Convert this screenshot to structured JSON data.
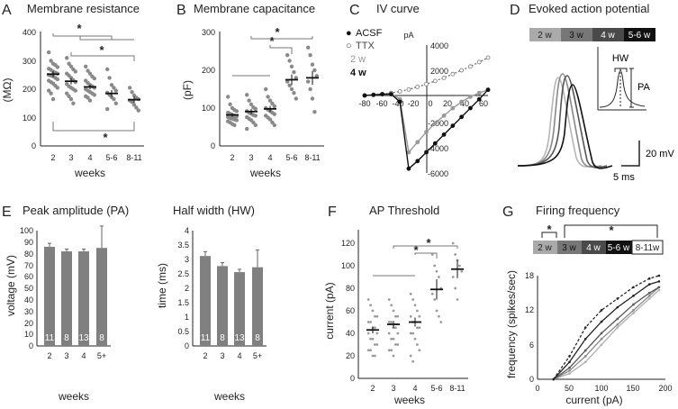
{
  "panels": {
    "A": {
      "letter": "A",
      "title": "Membrane resistance",
      "ylabel": "(MΩ)",
      "xlabel": "weeks",
      "yticks": [
        "0",
        "100",
        "200",
        "300",
        "400"
      ],
      "categories": [
        "2",
        "3",
        "4",
        "5-6",
        "8-11"
      ],
      "stars": [
        "*",
        "*",
        "*"
      ]
    },
    "B": {
      "letter": "B",
      "title": "Membrane capacitance",
      "ylabel": "(pF)",
      "xlabel": "weeks",
      "yticks": [
        "0",
        "100",
        "200",
        "300"
      ],
      "categories": [
        "2",
        "3",
        "4",
        "5-6",
        "8-11"
      ],
      "stars": [
        "*",
        "*"
      ]
    },
    "C": {
      "letter": "C",
      "title": "IV curve",
      "unit_y": "pA",
      "xticks": [
        "-80",
        "-60",
        "-40",
        "-20",
        "0",
        "20",
        "40",
        "60"
      ],
      "yticks": [
        "-6000",
        "-4000",
        "-2000",
        "2000",
        "4000"
      ],
      "legend": [
        "ACSF",
        "TTX",
        "2 w",
        "4 w"
      ],
      "legend_symbols": [
        "●",
        "○",
        "",
        ""
      ]
    },
    "D": {
      "letter": "D",
      "title": "Evoked action potential",
      "age_boxes": [
        "2 w",
        "3 w",
        "4 w",
        "5-6 w"
      ],
      "hw_label": "HW",
      "pa_label": "PA",
      "scale_y": "20 mV",
      "scale_x": "5 ms"
    },
    "E": {
      "letter": "E",
      "title": "Peak amplitude (PA)",
      "ylabel": "voltage (mV)",
      "xlabel": "weeks",
      "yticks": [
        "0",
        "10",
        "20",
        "30",
        "40",
        "50",
        "60",
        "70",
        "80",
        "90",
        "100"
      ]
    },
    "E2": {
      "title": "Half width (HW)",
      "ylabel": "time (ms)",
      "xlabel": "weeks",
      "yticks": [
        "0",
        "0.5",
        "1",
        "1.5",
        "2",
        "2.5",
        "3",
        "3.5",
        "4"
      ]
    },
    "F": {
      "letter": "F",
      "title": "AP Threshold",
      "ylabel": "current (pA)",
      "xlabel": "weeks",
      "yticks": [
        "0",
        "20",
        "40",
        "60",
        "80",
        "100",
        "120"
      ],
      "categories": [
        "2",
        "3",
        "4",
        "5-6",
        "8-11"
      ],
      "stars": [
        "*",
        "*"
      ]
    },
    "G": {
      "letter": "G",
      "title": "Firing frequency",
      "ylabel": "frequency (spikes/sec)",
      "xlabel": "current (pA)",
      "xticks": [
        "0",
        "50",
        "100",
        "150",
        "200"
      ],
      "yticks": [
        "0",
        "6",
        "12",
        "18"
      ],
      "age_boxes": [
        "2 w",
        "3 w",
        "4 w",
        "5-6 w",
        "8-11w"
      ],
      "stars": [
        "*",
        "*"
      ]
    }
  },
  "chart_data": [
    {
      "type": "scatter",
      "panel": "A",
      "title": "Membrane resistance",
      "xlabel": "weeks",
      "ylabel": "(MΩ)",
      "ylim": [
        0,
        400
      ],
      "categories": [
        "2",
        "3",
        "4",
        "5-6",
        "8-11"
      ],
      "means": [
        253,
        228,
        208,
        185,
        163
      ],
      "sem": [
        10,
        11,
        8,
        12,
        11
      ],
      "points": [
        [
          330,
          300,
          290,
          285,
          278,
          272,
          268,
          262,
          258,
          255,
          250,
          248,
          245,
          240,
          235,
          230,
          225,
          220,
          212,
          205,
          195,
          185,
          165
        ],
        [
          310,
          290,
          280,
          270,
          262,
          255,
          248,
          240,
          232,
          225,
          218,
          210,
          205,
          200,
          195,
          185,
          175,
          165,
          150
        ],
        [
          280,
          265,
          255,
          245,
          238,
          230,
          222,
          215,
          210,
          205,
          200,
          195,
          190,
          185,
          180,
          175,
          170,
          160
        ],
        [
          270,
          240,
          215,
          205,
          195,
          188,
          180,
          172,
          165,
          150,
          130
        ],
        [
          205,
          190,
          178,
          170,
          165,
          160,
          155,
          145,
          135,
          125
        ]
      ],
      "significance": [
        [
          "2",
          "8-11"
        ],
        [
          "2",
          "5-6"
        ],
        [
          "3",
          "8-11"
        ]
      ]
    },
    {
      "type": "scatter",
      "panel": "B",
      "title": "Membrane capacitance",
      "xlabel": "weeks",
      "ylabel": "(pF)",
      "ylim": [
        0,
        300
      ],
      "categories": [
        "2",
        "3",
        "4",
        "5-6",
        "8-11"
      ],
      "means": [
        82,
        91,
        98,
        175,
        180
      ],
      "sem": [
        5,
        7,
        8,
        14,
        18
      ],
      "points": [
        [
          130,
          110,
          100,
          95,
          92,
          88,
          85,
          82,
          80,
          78,
          76,
          74,
          72,
          70,
          68,
          65,
          62,
          58,
          55
        ],
        [
          135,
          120,
          110,
          102,
          98,
          92,
          88,
          85,
          82,
          80,
          76,
          72,
          68,
          62,
          55,
          45
        ],
        [
          150,
          130,
          120,
          112,
          105,
          100,
          96,
          92,
          88,
          84,
          80,
          75,
          70,
          62,
          55
        ],
        [
          240,
          225,
          210,
          195,
          180,
          170,
          160,
          150,
          140,
          125
        ],
        [
          260,
          240,
          215,
          200,
          185,
          170,
          150,
          125,
          90
        ]
      ],
      "significance": [
        [
          "4",
          "5-6"
        ],
        [
          "3",
          "8-11"
        ]
      ]
    },
    {
      "type": "line",
      "panel": "C",
      "title": "IV curve",
      "xlabel": "mV",
      "ylabel": "pA",
      "xlim": [
        -80,
        60
      ],
      "ylim": [
        -6000,
        4000
      ],
      "series": [
        {
          "name": "TTX",
          "x": [
            -80,
            -70,
            -60,
            -50,
            -40,
            -30,
            -20,
            -10,
            0,
            10,
            20,
            30,
            40,
            50,
            60
          ],
          "y": [
            0,
            50,
            120,
            200,
            320,
            480,
            680,
            900,
            1150,
            1400,
            1700,
            2000,
            2300,
            2650,
            3000
          ]
        },
        {
          "name": "ACSF 2 w",
          "x": [
            -80,
            -70,
            -60,
            -50,
            -40,
            -30,
            -20,
            -10,
            0,
            10,
            20,
            30,
            40,
            50,
            60
          ],
          "y": [
            0,
            50,
            100,
            150,
            -300,
            -4500,
            -3700,
            -2900,
            -2200,
            -1600,
            -1000,
            -500,
            -100,
            200,
            450
          ]
        },
        {
          "name": "ACSF 4 w",
          "x": [
            -80,
            -70,
            -60,
            -50,
            -40,
            -30,
            -20,
            -10,
            0,
            10,
            20,
            30,
            40,
            50,
            60
          ],
          "y": [
            0,
            50,
            100,
            100,
            -500,
            -5800,
            -5200,
            -4500,
            -3800,
            -3100,
            -2400,
            -1700,
            -1000,
            -300,
            450
          ]
        }
      ]
    },
    {
      "type": "line",
      "panel": "D",
      "title": "Evoked action potential",
      "series": [
        {
          "name": "2 w"
        },
        {
          "name": "3 w"
        },
        {
          "name": "4 w"
        },
        {
          "name": "5-6 w"
        }
      ]
    },
    {
      "type": "bar",
      "panel": "E",
      "title": "Peak amplitude (PA)",
      "xlabel": "weeks",
      "ylabel": "voltage (mV)",
      "ylim": [
        0,
        100
      ],
      "categories": [
        "2",
        "3",
        "4",
        "5+"
      ],
      "values": [
        86,
        82,
        82,
        85
      ],
      "errors": [
        3,
        2,
        2,
        19
      ],
      "n": [
        "11",
        "8",
        "13",
        "8"
      ]
    },
    {
      "type": "bar",
      "panel": "E2",
      "title": "Half width (HW)",
      "xlabel": "weeks",
      "ylabel": "time (ms)",
      "ylim": [
        0,
        4
      ],
      "categories": [
        "2",
        "3",
        "4",
        "5+"
      ],
      "values": [
        3.12,
        2.77,
        2.56,
        2.73
      ],
      "errors": [
        0.15,
        0.12,
        0.1,
        0.6
      ],
      "n": [
        "11",
        "8",
        "13",
        "8"
      ]
    },
    {
      "type": "scatter",
      "panel": "F",
      "title": "AP Threshold",
      "xlabel": "weeks",
      "ylabel": "current (pA)",
      "ylim": [
        0,
        120
      ],
      "categories": [
        "2",
        "3",
        "4",
        "5-6",
        "8-11"
      ],
      "means": [
        43,
        48,
        50,
        79,
        97
      ],
      "sem": [
        3,
        3,
        4,
        9,
        8
      ],
      "points": [
        [
          70,
          65,
          60,
          55,
          55,
          50,
          50,
          45,
          45,
          40,
          40,
          35,
          35,
          30,
          30,
          25,
          25,
          20,
          20
        ],
        [
          70,
          65,
          60,
          55,
          55,
          50,
          50,
          45,
          45,
          40,
          40,
          35,
          35,
          30,
          30,
          25,
          25,
          20
        ],
        [
          75,
          70,
          65,
          60,
          55,
          55,
          50,
          50,
          45,
          45,
          40,
          40,
          35,
          30,
          25,
          20,
          15
        ],
        [
          110,
          100,
          95,
          90,
          80,
          75,
          70,
          60,
          55,
          50
        ],
        [
          120,
          110,
          105,
          100,
          95,
          90,
          80,
          70
        ]
      ],
      "significance": [
        [
          "4",
          "5-6"
        ],
        [
          "3",
          "8-11"
        ]
      ]
    },
    {
      "type": "line",
      "panel": "G",
      "title": "Firing frequency",
      "xlabel": "current (pA)",
      "ylabel": "frequency (spikes/sec)",
      "xlim": [
        0,
        200
      ],
      "ylim": [
        0,
        18
      ],
      "series": [
        {
          "name": "2 w",
          "x": [
            25,
            50,
            75,
            100,
            125,
            150,
            175,
            190
          ],
          "y": [
            0,
            1,
            3,
            6,
            9,
            11.5,
            14,
            15.5
          ]
        },
        {
          "name": "3 w",
          "x": [
            25,
            50,
            75,
            100,
            125,
            150,
            175,
            190
          ],
          "y": [
            0,
            1.5,
            4,
            7,
            9.5,
            12,
            14.5,
            16
          ]
        },
        {
          "name": "4 w",
          "x": [
            25,
            50,
            75,
            100,
            125,
            150,
            175,
            190
          ],
          "y": [
            0,
            2,
            5,
            8,
            10.5,
            13,
            15,
            16
          ]
        },
        {
          "name": "5-6 w",
          "x": [
            25,
            50,
            75,
            100,
            125,
            150,
            175,
            190
          ],
          "y": [
            0,
            3,
            7,
            10,
            12.5,
            14.5,
            16.5,
            17
          ]
        },
        {
          "name": "8-11w",
          "x": [
            25,
            50,
            75,
            100,
            125,
            150,
            175,
            190
          ],
          "y": [
            0,
            4,
            9,
            12,
            14,
            16,
            17.5,
            18
          ]
        }
      ]
    }
  ]
}
